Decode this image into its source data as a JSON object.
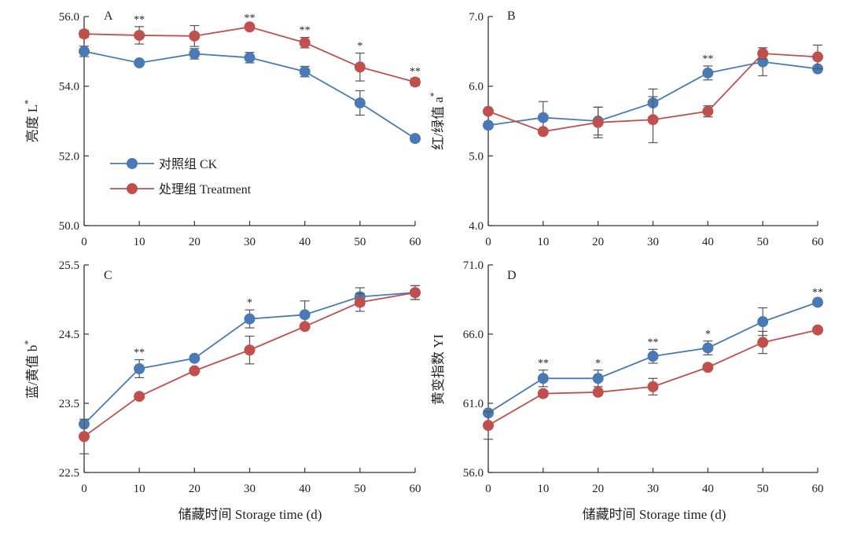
{
  "colors": {
    "ck": "#4a7ab5",
    "treatment": "#c0504d",
    "axis": "#333333",
    "errorbar": "#555555"
  },
  "legend": {
    "ck_label": "对照组 CK",
    "treatment_label": "处理组 Treatment"
  },
  "xlabel": "储藏时间 Storage time (d)",
  "chart_data": [
    {
      "type": "line",
      "panel": "A",
      "ylabel": "亮度 L",
      "ylabel_sup": "*",
      "x": [
        0,
        10,
        20,
        30,
        40,
        50,
        60
      ],
      "xlim": [
        0,
        60
      ],
      "ylim": [
        50.0,
        56.0
      ],
      "yticks": [
        "50.0",
        "52.0",
        "54.0",
        "56.0"
      ],
      "series": [
        {
          "name": "对照组 CK",
          "key": "ck",
          "values": [
            55.0,
            54.67,
            54.93,
            54.82,
            54.42,
            53.52,
            52.5
          ],
          "errors": [
            0.15,
            0.05,
            0.15,
            0.15,
            0.15,
            0.35,
            0.08
          ]
        },
        {
          "name": "处理组 Treatment",
          "key": "treatment",
          "values": [
            55.5,
            55.46,
            55.44,
            55.7,
            55.25,
            54.55,
            54.12
          ],
          "errors": [
            0.1,
            0.25,
            0.3,
            0.05,
            0.15,
            0.4,
            0.1
          ]
        }
      ],
      "annotations": [
        "",
        "**",
        "",
        "**",
        "**",
        "*",
        "**"
      ]
    },
    {
      "type": "line",
      "panel": "B",
      "ylabel": "红/绿值 a",
      "ylabel_sup": "*",
      "x": [
        0,
        10,
        20,
        30,
        40,
        50,
        60
      ],
      "xlim": [
        0,
        60
      ],
      "ylim": [
        4.0,
        7.0
      ],
      "yticks": [
        "4.0",
        "5.0",
        "6.0",
        "7.0"
      ],
      "series": [
        {
          "name": "对照组 CK",
          "key": "ck",
          "values": [
            5.44,
            5.55,
            5.5,
            5.76,
            6.19,
            6.35,
            6.25
          ],
          "errors": [
            0.03,
            0.23,
            0.2,
            0.2,
            0.1,
            0.2,
            0.03
          ]
        },
        {
          "name": "处理组 Treatment",
          "key": "treatment",
          "values": [
            5.64,
            5.35,
            5.48,
            5.52,
            5.64,
            6.47,
            6.42
          ],
          "errors": [
            0.03,
            0.03,
            0.22,
            0.33,
            0.08,
            0.08,
            0.17
          ]
        }
      ],
      "annotations": [
        "",
        "",
        "",
        "",
        "**",
        "",
        ""
      ]
    },
    {
      "type": "line",
      "panel": "C",
      "ylabel": "蓝/黄值 b",
      "ylabel_sup": "*",
      "x": [
        0,
        10,
        20,
        30,
        40,
        50,
        60
      ],
      "xlim": [
        0,
        60
      ],
      "ylim": [
        22.5,
        25.5
      ],
      "yticks": [
        "22.5",
        "23.5",
        "24.5",
        "25.5"
      ],
      "series": [
        {
          "name": "对照组 CK",
          "key": "ck",
          "values": [
            23.2,
            24.0,
            24.15,
            24.72,
            24.78,
            25.04,
            25.1
          ],
          "errors": [
            0.03,
            0.13,
            0.03,
            0.13,
            0.2,
            0.13,
            0.1
          ]
        },
        {
          "name": "处理组 Treatment",
          "key": "treatment",
          "values": [
            23.02,
            23.6,
            23.97,
            24.27,
            24.61,
            24.96,
            25.1
          ],
          "errors": [
            0.25,
            0.03,
            0.03,
            0.2,
            0.03,
            0.13,
            0.1
          ]
        }
      ],
      "annotations": [
        "",
        "**",
        "",
        "*",
        "",
        "",
        ""
      ]
    },
    {
      "type": "line",
      "panel": "D",
      "ylabel": "黄变指数 YI",
      "ylabel_sup": "",
      "x": [
        0,
        10,
        20,
        30,
        40,
        50,
        60
      ],
      "xlim": [
        0,
        60
      ],
      "ylim": [
        56.0,
        71.0
      ],
      "yticks": [
        "56.0",
        "61.0",
        "66.0",
        "71.0"
      ],
      "series": [
        {
          "name": "对照组 CK",
          "key": "ck",
          "values": [
            60.3,
            62.8,
            62.8,
            64.4,
            65.0,
            66.9,
            68.3
          ],
          "errors": [
            0.2,
            0.6,
            0.6,
            0.5,
            0.5,
            1.0,
            0.2
          ]
        },
        {
          "name": "处理组 Treatment",
          "key": "treatment",
          "values": [
            59.4,
            61.7,
            61.8,
            62.2,
            63.6,
            65.4,
            66.3
          ],
          "errors": [
            1.0,
            0.2,
            0.2,
            0.6,
            0.2,
            0.8,
            0.2
          ]
        }
      ],
      "annotations": [
        "",
        "**",
        "*",
        "**",
        "*",
        "",
        "**"
      ]
    }
  ]
}
